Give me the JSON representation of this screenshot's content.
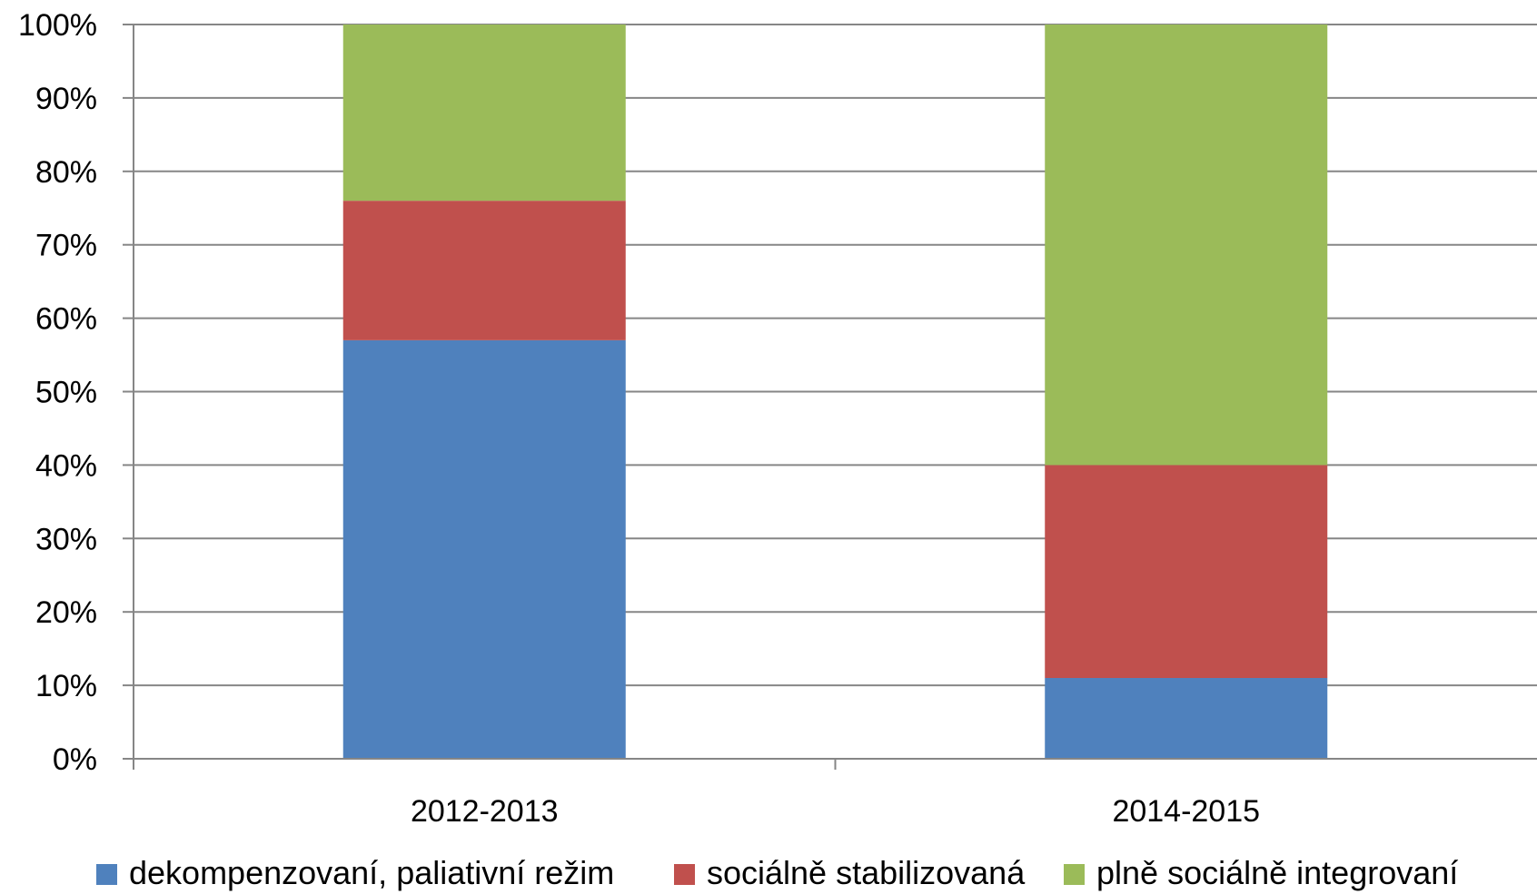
{
  "chart_data": {
    "type": "bar",
    "stacked": true,
    "title": "",
    "xlabel": "",
    "ylabel": "",
    "categories": [
      "2012-2013",
      "2014-2015"
    ],
    "series": [
      {
        "name": "dekompenzovaní, paliativní režim",
        "color": "#4F81BD",
        "values": [
          57,
          11
        ]
      },
      {
        "name": "sociálně stabilizovaná",
        "color": "#C0504D",
        "values": [
          19,
          29
        ]
      },
      {
        "name": "plně sociálně integrovaní",
        "color": "#9BBB59",
        "values": [
          24,
          60
        ]
      }
    ],
    "ylim": [
      0,
      100
    ],
    "yticks": [
      "0%",
      "10%",
      "20%",
      "30%",
      "40%",
      "50%",
      "60%",
      "70%",
      "80%",
      "90%",
      "100%"
    ],
    "grid": true,
    "legend": "bottom"
  }
}
